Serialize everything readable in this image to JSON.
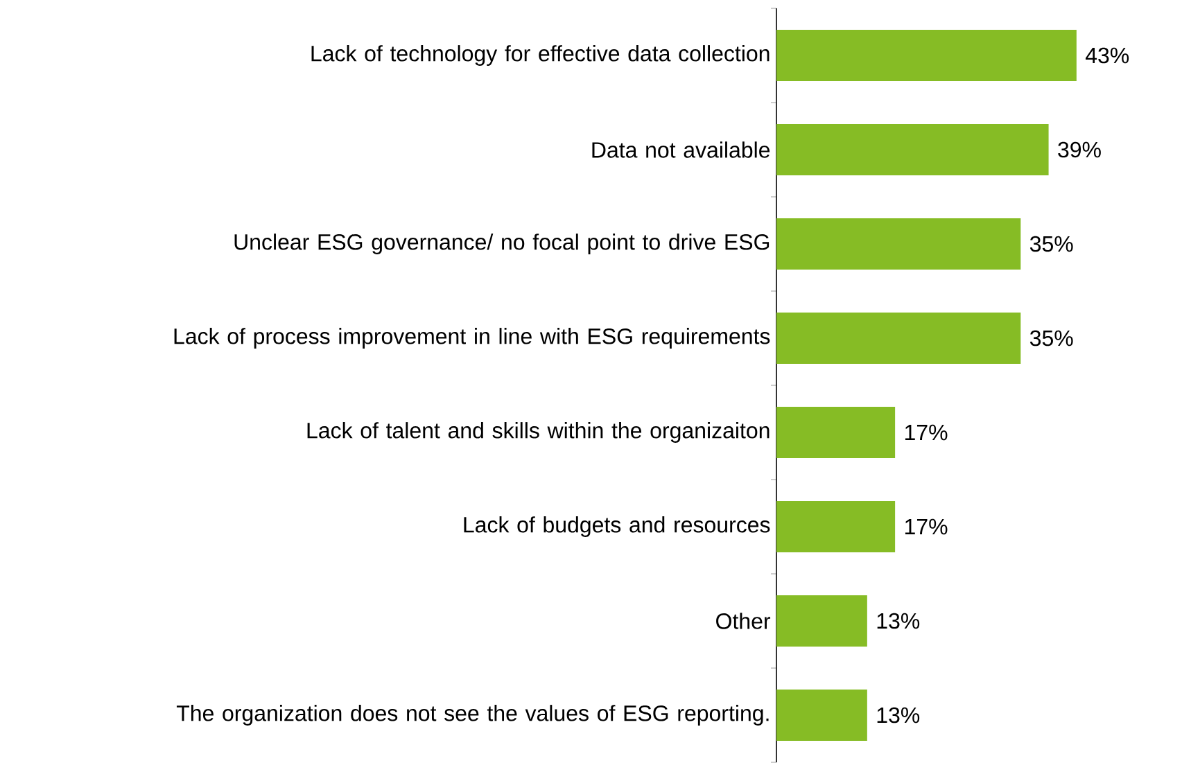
{
  "chart_data": {
    "type": "bar",
    "orientation": "horizontal",
    "categories": [
      "Lack of technology for effective data collection",
      "Data not available",
      "Unclear ESG governance/ no focal point to drive ESG",
      "Lack of process improvement in line with ESG requirements",
      "Lack of talent and skills within the organizaiton",
      "Lack of budgets and resources",
      "Other",
      "The organization does not see the values of ESG reporting."
    ],
    "values": [
      43,
      39,
      35,
      35,
      17,
      17,
      13,
      13
    ],
    "value_labels": [
      "43%",
      "39%",
      "35%",
      "35%",
      "17%",
      "17%",
      "13%",
      "13%"
    ],
    "color": "#86bc25"
  }
}
